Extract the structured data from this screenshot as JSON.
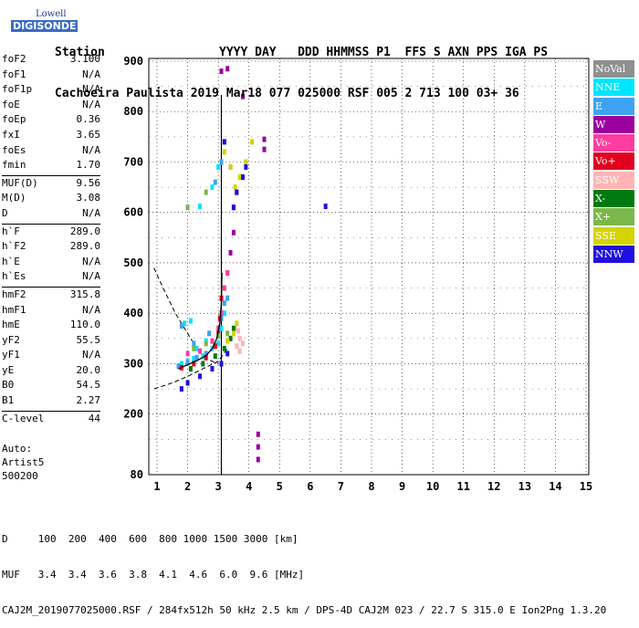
{
  "logo": {
    "line1": "Lowell",
    "line2": "DIGISONDE"
  },
  "header": {
    "line1": "Station                YYYY DAY   DDD HHMMSS P1  FFS S AXN PPS IGA PS",
    "line2": "Cachoeira Paulista 2019 Mar18 077 025000 RSF 005 2 713 100 03+ 36"
  },
  "params": [
    {
      "k": "foF2",
      "v": "3.100"
    },
    {
      "k": "foF1",
      "v": "N/A"
    },
    {
      "k": "foF1p",
      "v": "N/A"
    },
    {
      "k": "foE",
      "v": "N/A"
    },
    {
      "k": "foEp",
      "v": "0.36"
    },
    {
      "k": "fxI",
      "v": "3.65"
    },
    {
      "k": "foEs",
      "v": "N/A"
    },
    {
      "k": "fmin",
      "v": "1.70"
    },
    {
      "sep": true
    },
    {
      "k": "MUF(D)",
      "v": "9.56"
    },
    {
      "k": "M(D)",
      "v": "3.08"
    },
    {
      "k": "D",
      "v": "N/A"
    },
    {
      "sep": true
    },
    {
      "k": "h`F",
      "v": "289.0"
    },
    {
      "k": "h`F2",
      "v": "289.0"
    },
    {
      "k": "h`E",
      "v": "N/A"
    },
    {
      "k": "h`Es",
      "v": "N/A"
    },
    {
      "sep": true
    },
    {
      "k": "hmF2",
      "v": "315.8"
    },
    {
      "k": "hmF1",
      "v": "N/A"
    },
    {
      "k": "hmE",
      "v": "110.0"
    },
    {
      "k": "yF2",
      "v": "55.5"
    },
    {
      "k": "yF1",
      "v": "N/A"
    },
    {
      "k": "yE",
      "v": "20.0"
    },
    {
      "k": "B0",
      "v": "54.5"
    },
    {
      "k": "B1",
      "v": "2.27"
    },
    {
      "sep": true
    },
    {
      "k": "C-level",
      "v": "44"
    }
  ],
  "auto": {
    "l1": "Auto:",
    "l2": "Artist5",
    "l3": "500200"
  },
  "footer": {
    "l1": "D     100  200  400  600  800 1000 1500 3000 [km]",
    "l2": "MUF   3.4  3.4  3.6  3.8  4.1  4.6  6.0  9.6 [MHz]",
    "l3": "CAJ2M_2019077025000.RSF / 284fx512h 50 kHz 2.5 km / DPS-4D CAJ2M 023 / 22.7 S 315.0 E Ion2Png 1.3.20"
  },
  "legend": [
    {
      "label": "NoVal",
      "color": "#8f8f8f"
    },
    {
      "label": "NNE",
      "color": "#00e5ff"
    },
    {
      "label": "E",
      "color": "#3da3f0"
    },
    {
      "label": "W",
      "color": "#9c009c"
    },
    {
      "label": "Vo-",
      "color": "#ff3ca0"
    },
    {
      "label": "Vo+",
      "color": "#e00020"
    },
    {
      "label": "SSW",
      "color": "#ffb4b4"
    },
    {
      "label": "X-",
      "color": "#007a10"
    },
    {
      "label": "X+",
      "color": "#7ab84a"
    },
    {
      "label": "SSE",
      "color": "#d4d400"
    },
    {
      "label": "NNW",
      "color": "#2010e0"
    }
  ],
  "chart_data": {
    "type": "scatter",
    "xlabel": "",
    "ylabel": "",
    "xlim": [
      0.9,
      15.1
    ],
    "ylim": [
      80,
      900
    ],
    "xticks": [
      "1",
      "2",
      "3",
      "4",
      "5",
      "6",
      "7",
      "8",
      "9",
      "10",
      "11",
      "12",
      "13",
      "14",
      "15"
    ],
    "yticks": [
      "900",
      "800",
      "700",
      "600",
      "500",
      "400",
      "300",
      "200",
      "80"
    ],
    "grid": true,
    "foF2_marker": 3.1,
    "series": [
      {
        "name": "NNE",
        "color": "#00e5ff",
        "points": [
          [
            1.8,
            300
          ],
          [
            2.0,
            305
          ],
          [
            2.2,
            310
          ],
          [
            2.5,
            315
          ],
          [
            2.8,
            330
          ],
          [
            3.0,
            340
          ],
          [
            3.1,
            370
          ],
          [
            3.2,
            400
          ],
          [
            2.3,
            330
          ],
          [
            2.6,
            345
          ],
          [
            1.9,
            380
          ],
          [
            2.1,
            385
          ],
          [
            2.4,
            612
          ],
          [
            2.8,
            650
          ],
          [
            3.0,
            690
          ],
          [
            3.2,
            740
          ]
        ]
      },
      {
        "name": "E",
        "color": "#3da3f0",
        "points": [
          [
            1.7,
            295
          ],
          [
            2.0,
            302
          ],
          [
            2.3,
            312
          ],
          [
            2.6,
            320
          ],
          [
            2.9,
            335
          ],
          [
            3.0,
            355
          ],
          [
            3.1,
            390
          ],
          [
            3.2,
            420
          ],
          [
            2.2,
            340
          ],
          [
            2.7,
            360
          ],
          [
            1.8,
            375
          ],
          [
            3.3,
            430
          ],
          [
            2.9,
            660
          ],
          [
            3.1,
            700
          ]
        ]
      },
      {
        "name": "W",
        "color": "#9c009c",
        "points": [
          [
            3.3,
            480
          ],
          [
            3.4,
            520
          ],
          [
            3.5,
            560
          ],
          [
            3.5,
            610
          ],
          [
            3.6,
            640
          ],
          [
            3.4,
            690
          ],
          [
            3.1,
            880
          ],
          [
            3.3,
            885
          ],
          [
            4.3,
            160
          ],
          [
            4.3,
            135
          ],
          [
            4.3,
            110
          ],
          [
            4.5,
            745
          ],
          [
            4.5,
            725
          ],
          [
            3.8,
            830
          ]
        ]
      },
      {
        "name": "Vo-",
        "color": "#ff3ca0",
        "points": [
          [
            2.0,
            320
          ],
          [
            2.4,
            325
          ],
          [
            2.8,
            345
          ],
          [
            3.0,
            370
          ],
          [
            3.1,
            400
          ],
          [
            3.2,
            450
          ],
          [
            3.3,
            480
          ]
        ]
      },
      {
        "name": "Vo+",
        "color": "#e00020",
        "points": [
          [
            1.8,
            292
          ],
          [
            2.2,
            300
          ],
          [
            2.6,
            312
          ],
          [
            2.9,
            335
          ],
          [
            3.0,
            360
          ],
          [
            3.05,
            390
          ],
          [
            3.1,
            430
          ]
        ]
      },
      {
        "name": "SSW",
        "color": "#ffb4b4",
        "points": [
          [
            3.6,
            335
          ],
          [
            3.7,
            350
          ],
          [
            3.65,
            365
          ],
          [
            3.8,
            340
          ],
          [
            3.7,
            325
          ],
          [
            3.55,
            370
          ]
        ]
      },
      {
        "name": "X-",
        "color": "#007a10",
        "points": [
          [
            2.1,
            290
          ],
          [
            2.5,
            300
          ],
          [
            2.9,
            315
          ],
          [
            3.2,
            330
          ],
          [
            3.4,
            350
          ],
          [
            3.5,
            370
          ]
        ]
      },
      {
        "name": "X+",
        "color": "#7ab84a",
        "points": [
          [
            2.2,
            330
          ],
          [
            2.6,
            340
          ],
          [
            3.0,
            355
          ],
          [
            3.3,
            360
          ],
          [
            2.0,
            610
          ],
          [
            2.6,
            640
          ]
        ]
      },
      {
        "name": "SSE",
        "color": "#d4d400",
        "points": [
          [
            3.3,
            345
          ],
          [
            3.5,
            360
          ],
          [
            3.6,
            380
          ],
          [
            3.55,
            650
          ],
          [
            3.7,
            670
          ],
          [
            3.9,
            700
          ],
          [
            4.1,
            740
          ],
          [
            3.4,
            690
          ],
          [
            3.2,
            720
          ]
        ]
      },
      {
        "name": "NNW",
        "color": "#2010e0",
        "points": [
          [
            1.8,
            250
          ],
          [
            2.0,
            262
          ],
          [
            2.4,
            275
          ],
          [
            2.8,
            290
          ],
          [
            3.1,
            300
          ],
          [
            3.3,
            320
          ],
          [
            3.5,
            610
          ],
          [
            3.6,
            640
          ],
          [
            3.8,
            670
          ],
          [
            3.9,
            690
          ],
          [
            3.2,
            740
          ],
          [
            6.5,
            612
          ]
        ]
      }
    ],
    "profile_curve": [
      [
        1.7,
        290
      ],
      [
        2.0,
        298
      ],
      [
        2.3,
        306
      ],
      [
        2.6,
        316
      ],
      [
        2.8,
        330
      ],
      [
        2.95,
        350
      ],
      [
        3.05,
        380
      ],
      [
        3.1,
        420
      ],
      [
        3.12,
        480
      ]
    ],
    "dashed_curves": [
      [
        [
          0.9,
          490
        ],
        [
          1.2,
          450
        ],
        [
          1.6,
          400
        ],
        [
          2.0,
          360
        ],
        [
          2.3,
          330
        ],
        [
          2.6,
          310
        ],
        [
          3.0,
          300
        ]
      ],
      [
        [
          0.9,
          250
        ],
        [
          1.5,
          262
        ],
        [
          2.0,
          275
        ],
        [
          2.5,
          290
        ],
        [
          3.0,
          305
        ],
        [
          3.3,
          330
        ]
      ]
    ]
  }
}
